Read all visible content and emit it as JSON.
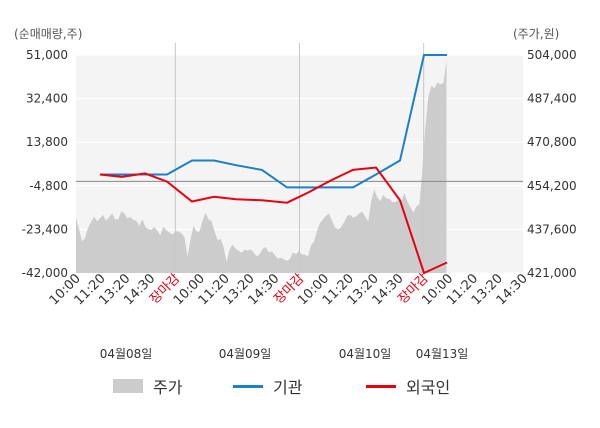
{
  "chart_data": {
    "type": "line",
    "left_axis_label": "(순매매량,주)",
    "right_axis_label": "(주가,원)",
    "left_ticks": [
      "51,000",
      "32,400",
      "13,800",
      "-4,800",
      "-23,400",
      "-42,000"
    ],
    "right_ticks": [
      "504,000",
      "487,400",
      "470,800",
      "454,200",
      "437,600",
      "421,000"
    ],
    "left_ylim": [
      -42000,
      51000
    ],
    "right_ylim": [
      421000,
      504000
    ],
    "x_ticks": [
      "10:00",
      "11:20",
      "13:20",
      "14:30",
      "장마감",
      "10:00",
      "11:20",
      "13:20",
      "14:30",
      "장마감",
      "10:00",
      "11:20",
      "13:20",
      "14:30",
      "장마감",
      "10:00",
      "11:20",
      "13:20",
      "14:30"
    ],
    "x_tick_colors": [
      "#333333",
      "#333333",
      "#333333",
      "#333333",
      "#e60012",
      "#333333",
      "#333333",
      "#333333",
      "#333333",
      "#e60012",
      "#333333",
      "#333333",
      "#333333",
      "#333333",
      "#e60012",
      "#333333",
      "#333333",
      "#333333",
      "#333333"
    ],
    "date_labels": [
      "04월08일",
      "04월09일",
      "04월10일",
      "04월13일"
    ],
    "grid": true,
    "reference_line_value": -2900,
    "series": [
      {
        "name": "주가",
        "kind": "area",
        "axis": "right",
        "color": "#cccccc",
        "values": [
          442100,
          437800,
          433000,
          434200,
          438200,
          440400,
          442500,
          440700,
          441900,
          443100,
          440900,
          442200,
          443700,
          441400,
          441400,
          444400,
          443800,
          441900,
          442300,
          441300,
          440900,
          439000,
          441500,
          438600,
          437700,
          437500,
          438500,
          437100,
          435300,
          438700,
          437300,
          436400,
          435700,
          436800,
          436900,
          436100,
          434700,
          427400,
          433700,
          438900,
          436800,
          436700,
          440900,
          444000,
          441400,
          440800,
          436800,
          433500,
          434000,
          430900,
          425200,
          430000,
          431800,
          430200,
          429400,
          428700,
          429900,
          429500,
          430000,
          428800,
          427300,
          428200,
          430200,
          430900,
          428800,
          429300,
          427900,
          426500,
          426800,
          426200,
          425700,
          426300,
          428900,
          428100,
          429400,
          428000,
          428000,
          427300,
          431600,
          433000,
          437000,
          440000,
          441500,
          442800,
          443600,
          440900,
          438300,
          437600,
          438400,
          440300,
          442700,
          443200,
          442000,
          442600,
          443700,
          444400,
          442400,
          440600,
          448300,
          452800,
          449900,
          448300,
          450700,
          449400,
          449200,
          448000,
          448000,
          448800,
          448100,
          451500,
          448300,
          446000,
          444000,
          446300,
          447200,
          460600,
          476800,
          488300,
          492300,
          491400,
          493600,
          492800,
          493400,
          502000
        ]
      },
      {
        "name": "기관",
        "kind": "line",
        "axis": "left",
        "color": "#1a80c8",
        "values": [
          0,
          0,
          0,
          0,
          6000,
          6000,
          4000,
          2000,
          -5500,
          -5500,
          -5500,
          0,
          6000,
          51000,
          51000
        ]
      },
      {
        "name": "외국인",
        "kind": "line",
        "axis": "left",
        "color": "#e60012",
        "values": [
          0,
          -1000,
          500,
          -3000,
          -11500,
          -9500,
          -10500,
          -11000,
          -12000,
          -7500,
          -2500,
          2000,
          3000,
          -11000,
          -42000,
          -37500
        ]
      }
    ],
    "legend": [
      {
        "label": "주가",
        "kind": "area",
        "color": "#cccccc"
      },
      {
        "label": "기관",
        "kind": "line",
        "color": "#1a80c8"
      },
      {
        "label": "외국인",
        "kind": "line",
        "color": "#e60012"
      }
    ]
  }
}
